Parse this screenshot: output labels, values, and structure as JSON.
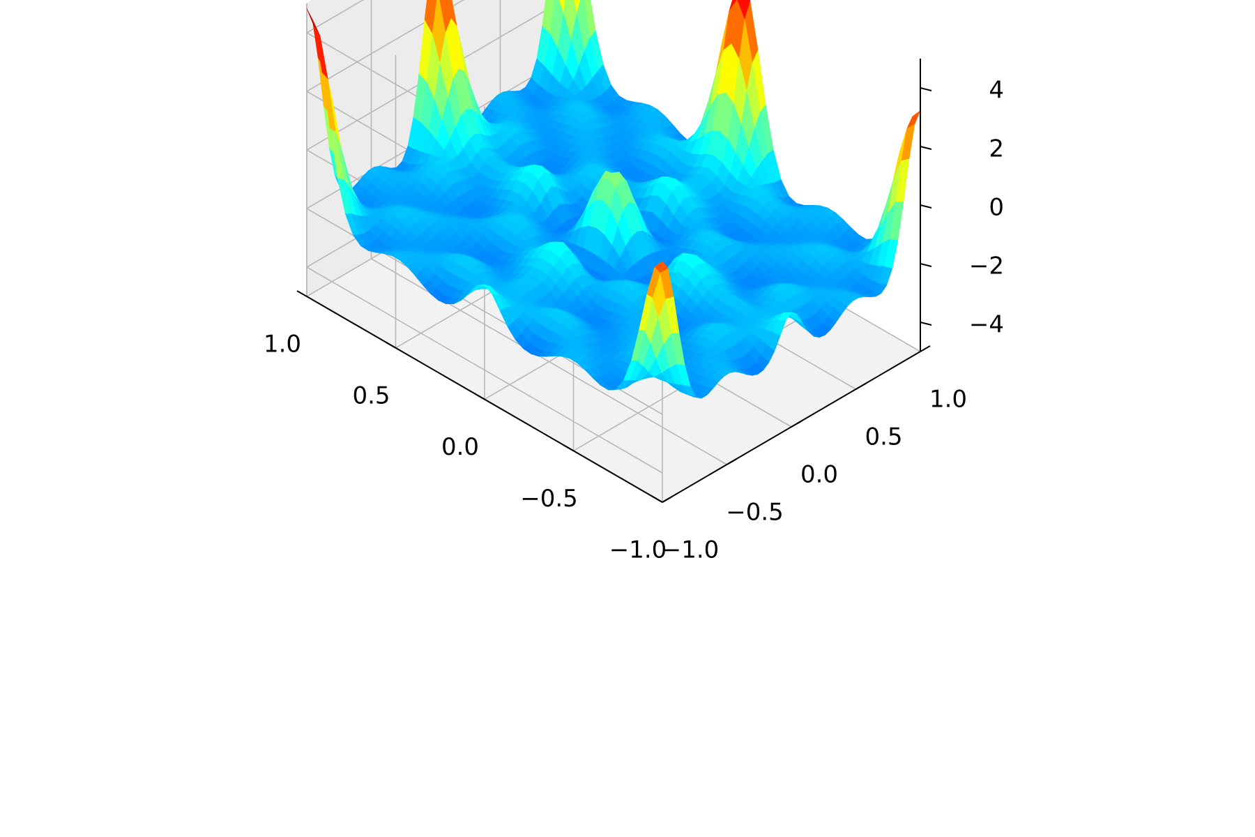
{
  "chart_data": {
    "type": "surface",
    "title": "",
    "colormap": "jet",
    "grid": true,
    "x_axis": {
      "label": "",
      "range": [
        -1.0,
        1.0
      ],
      "ticks": [
        -1.0,
        -0.5,
        0.0,
        0.5,
        1.0
      ],
      "tick_labels": [
        "−1.0",
        "−0.5",
        "0.0",
        "0.5",
        "1.0"
      ]
    },
    "y_axis": {
      "label": "",
      "range": [
        -1.0,
        1.0
      ],
      "ticks": [
        -1.0,
        -0.5,
        0.0,
        0.5,
        1.0
      ],
      "tick_labels": [
        "−1.0",
        "−0.5",
        "0.0",
        "0.5",
        "1.0"
      ]
    },
    "z_axis": {
      "label": "",
      "range": [
        -5,
        5
      ],
      "ticks": [
        -4,
        -2,
        0,
        2,
        4
      ],
      "tick_labels": [
        "−4",
        "−2",
        "0",
        "2",
        "4"
      ]
    },
    "peaks": [
      {
        "x": -1.0,
        "y": 1.0,
        "z": 4.6
      },
      {
        "x": 1.0,
        "y": 1.0,
        "z": 4.2
      },
      {
        "x": -1.0,
        "y": -1.0,
        "z": 3.0
      },
      {
        "x": 1.0,
        "y": -1.0,
        "z": 3.0
      },
      {
        "x": 0.0,
        "y": 1.0,
        "z": 3.2
      },
      {
        "x": 1.0,
        "y": 0.0,
        "z": 3.2
      }
    ]
  }
}
